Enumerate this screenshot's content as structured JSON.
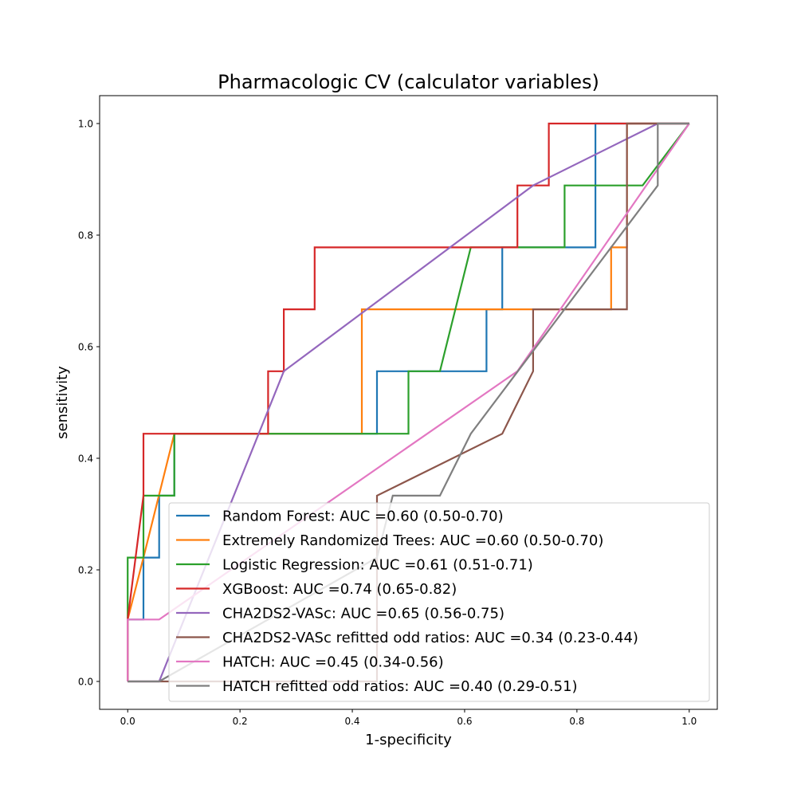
{
  "chart_data": {
    "type": "line",
    "title": "Pharmacologic CV (calculator variables)",
    "xlabel": "1-specificity",
    "ylabel": "sensitivity",
    "xlim": [
      -0.05,
      1.05
    ],
    "ylim": [
      -0.05,
      1.05
    ],
    "xticks": [
      "0.0",
      "0.2",
      "0.4",
      "0.6",
      "0.8",
      "1.0"
    ],
    "yticks": [
      "0.0",
      "0.2",
      "0.4",
      "0.6",
      "0.8",
      "1.0"
    ],
    "grid": false,
    "legend_position": "lower-right",
    "series": [
      {
        "name": "Random Forest: AUC =0.60 (0.50-0.70)",
        "color": "#1f77b4",
        "x": [
          0,
          0,
          0.028,
          0.028,
          0.056,
          0.056,
          0.083,
          0.083,
          0.444,
          0.444,
          0.639,
          0.639,
          0.667,
          0.667,
          0.833,
          0.833,
          1.0
        ],
        "y": [
          0,
          0.111,
          0.111,
          0.222,
          0.222,
          0.333,
          0.333,
          0.444,
          0.444,
          0.556,
          0.556,
          0.667,
          0.667,
          0.778,
          0.778,
          1.0,
          1.0
        ]
      },
      {
        "name": "Extremely Randomized Trees: AUC =0.60 (0.50-0.70)",
        "color": "#ff7f0e",
        "x": [
          0,
          0,
          0.028,
          0.083,
          0.417,
          0.417,
          0.861,
          0.861,
          0.889,
          0.889,
          1.0
        ],
        "y": [
          0,
          0.111,
          0.222,
          0.444,
          0.444,
          0.667,
          0.667,
          0.778,
          0.778,
          1.0,
          1.0
        ]
      },
      {
        "name": "Logistic Regression: AUC =0.61 (0.51-0.71)",
        "color": "#2ca02c",
        "x": [
          0,
          0,
          0.028,
          0.028,
          0.083,
          0.083,
          0.5,
          0.5,
          0.556,
          0.611,
          0.778,
          0.778,
          0.917,
          1.0
        ],
        "y": [
          0,
          0.222,
          0.222,
          0.333,
          0.333,
          0.444,
          0.444,
          0.556,
          0.556,
          0.778,
          0.778,
          0.889,
          0.889,
          1.0
        ]
      },
      {
        "name": "XGBoost: AUC =0.74 (0.65-0.82)",
        "color": "#d62728",
        "x": [
          0,
          0,
          0.028,
          0.028,
          0.25,
          0.25,
          0.278,
          0.278,
          0.333,
          0.333,
          0.694,
          0.694,
          0.75,
          0.75,
          1.0
        ],
        "y": [
          0,
          0.111,
          0.333,
          0.444,
          0.444,
          0.556,
          0.556,
          0.667,
          0.667,
          0.778,
          0.778,
          0.889,
          0.889,
          1.0,
          1.0
        ]
      },
      {
        "name": "CHA2DS2-VASc: AUC =0.65 (0.56-0.75)",
        "color": "#9467bd",
        "x": [
          0,
          0.056,
          0.278,
          0.722,
          0.944,
          1.0
        ],
        "y": [
          0,
          0,
          0.556,
          0.889,
          1.0,
          1.0
        ]
      },
      {
        "name": "CHA2DS2-VASc refitted odd ratios: AUC =0.34 (0.23-0.44)",
        "color": "#8c564b",
        "x": [
          0,
          0.444,
          0.444,
          0.667,
          0.722,
          0.722,
          0.889,
          0.889,
          1.0
        ],
        "y": [
          0,
          0,
          0.333,
          0.444,
          0.556,
          0.667,
          0.667,
          1.0,
          1.0
        ]
      },
      {
        "name": "HATCH: AUC =0.45 (0.34-0.56)",
        "color": "#e377c2",
        "x": [
          0,
          0,
          0.056,
          0.694,
          1.0
        ],
        "y": [
          0,
          0.111,
          0.111,
          0.556,
          1.0
        ]
      },
      {
        "name": "HATCH refitted odd ratios: AUC =0.40 (0.29-0.51)",
        "color": "#7f7f7f",
        "x": [
          0,
          0.056,
          0.444,
          0.472,
          0.556,
          0.611,
          0.944,
          0.944,
          1.0
        ],
        "y": [
          0,
          0,
          0.222,
          0.333,
          0.333,
          0.444,
          0.889,
          1.0,
          1.0
        ]
      }
    ]
  }
}
